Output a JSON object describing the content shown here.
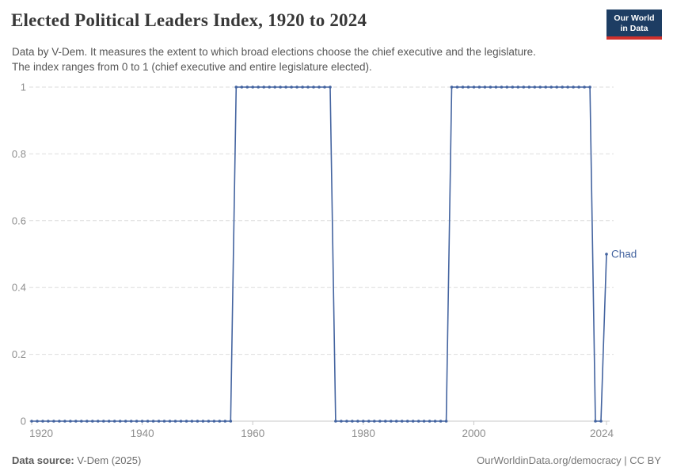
{
  "chart_data": {
    "type": "line",
    "title": "Elected Political Leaders Index, 1920 to 2024",
    "subtitle_lines": [
      "Data by V-Dem. It measures the extent to which broad elections choose the chief executive and the legislature.",
      "The index ranges from 0 to 1 (chief executive and entire legislature elected).",
      ""
    ],
    "subtitle": "Data by V-Dem. It measures the extent to which broad elections choose the chief executive and the legislature. The index ranges from 0 to 1 (chief executive and entire legislature elected).",
    "entity_label": "Chad",
    "xlabel": "",
    "ylabel": "",
    "xlim": [
      1920,
      2024
    ],
    "ylim": [
      0,
      1
    ],
    "x_ticks": [
      1920,
      1940,
      1960,
      1980,
      2000,
      2024
    ],
    "y_ticks": [
      0,
      0.2,
      0.4,
      0.6,
      0.8,
      1
    ],
    "grid": true,
    "legend_position": "end-of-line",
    "line_color": "#4464a0",
    "grid_color": "#dedede",
    "axis_color": "#c9c9c9",
    "tick_label_color": "#8e8e8e",
    "series": [
      {
        "name": "Chad",
        "segments": [
          {
            "from": 1920,
            "to": 1956,
            "value": 0
          },
          {
            "from": 1957,
            "to": 1974,
            "value": 1
          },
          {
            "from": 1975,
            "to": 1995,
            "value": 0
          },
          {
            "from": 1996,
            "to": 2021,
            "value": 1
          },
          {
            "from": 2022,
            "to": 2023,
            "value": 0
          },
          {
            "from": 2024,
            "to": 2024,
            "value": 0.5
          }
        ]
      }
    ]
  },
  "branding": {
    "logo_line1": "Our World",
    "logo_line2": "in Data",
    "navy": "#1d3d63",
    "red": "#d0312d"
  },
  "footer": {
    "source_label": "Data source:",
    "source_value": "V-Dem (2025)",
    "license": "OurWorldinData.org/democracy | CC BY"
  }
}
